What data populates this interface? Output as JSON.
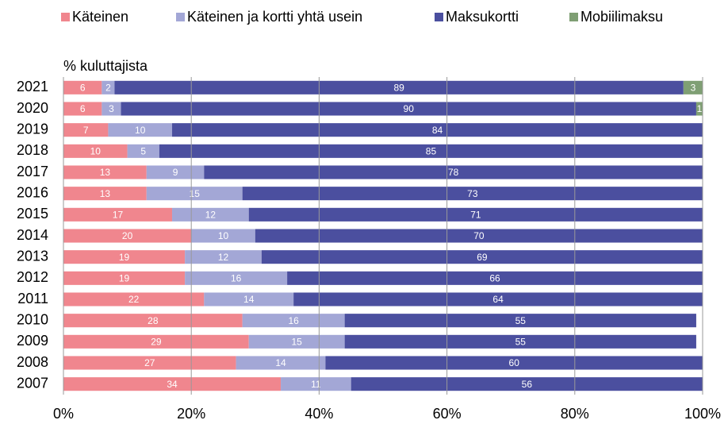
{
  "chart_data": {
    "type": "stacked_bar_horizontal",
    "axis_label": "% kuluttajista",
    "categories": [
      "2021",
      "2020",
      "2019",
      "2018",
      "2017",
      "2016",
      "2015",
      "2014",
      "2013",
      "2012",
      "2011",
      "2010",
      "2009",
      "2008",
      "2007"
    ],
    "series": [
      {
        "name": "Käteinen",
        "color": "#f0868e",
        "values": [
          6,
          6,
          7,
          10,
          13,
          13,
          17,
          20,
          19,
          19,
          22,
          28,
          29,
          27,
          34
        ]
      },
      {
        "name": "Käteinen ja kortti yhtä usein",
        "color": "#a3a7d6",
        "values": [
          2,
          3,
          10,
          5,
          9,
          15,
          12,
          10,
          12,
          16,
          14,
          16,
          15,
          14,
          11
        ]
      },
      {
        "name": "Maksukortti",
        "color": "#4b4f9f",
        "values": [
          89,
          90,
          84,
          85,
          78,
          73,
          71,
          70,
          69,
          66,
          64,
          55,
          55,
          60,
          56
        ]
      },
      {
        "name": "Mobiilimaksu",
        "color": "#7f9f74",
        "values": [
          3,
          1,
          null,
          null,
          null,
          null,
          null,
          null,
          null,
          null,
          null,
          null,
          null,
          null,
          null
        ]
      }
    ],
    "xlim": [
      0,
      100
    ],
    "xticks": [
      {
        "value": 0,
        "label": "0%"
      },
      {
        "value": 20,
        "label": "20%"
      },
      {
        "value": 40,
        "label": "40%"
      },
      {
        "value": 60,
        "label": "60%"
      },
      {
        "value": 80,
        "label": "80%"
      },
      {
        "value": 100,
        "label": "100%"
      }
    ],
    "grid": true,
    "legend": "top"
  }
}
